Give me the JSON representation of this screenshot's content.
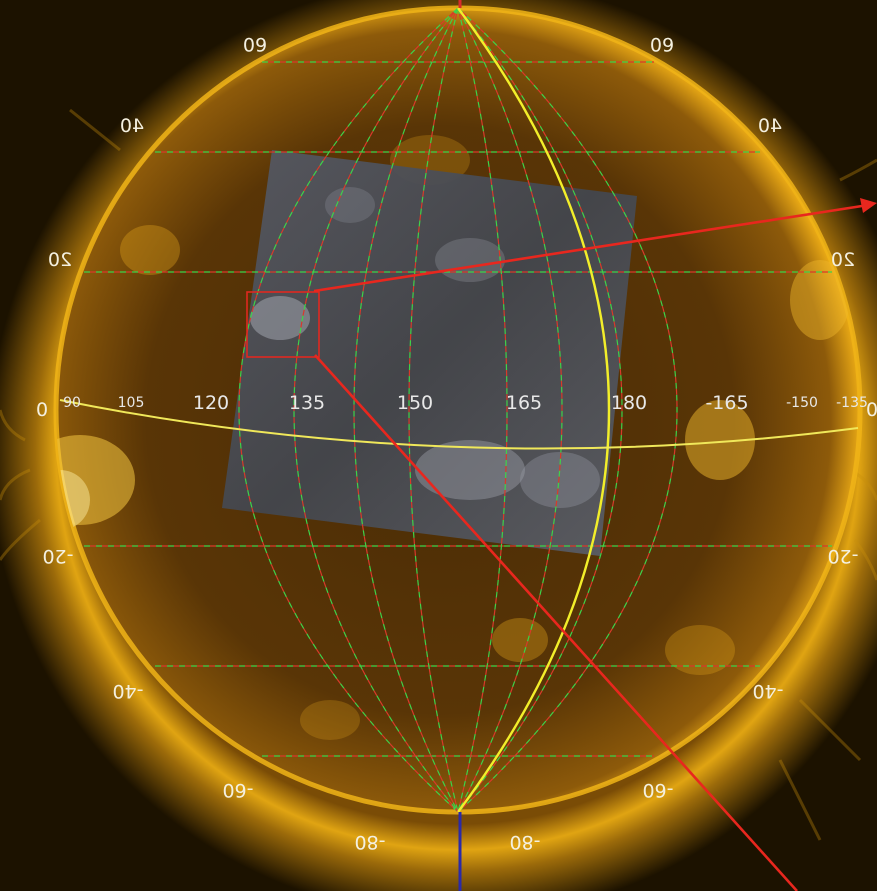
{
  "image": {
    "subject": "solar-disk",
    "colors": {
      "corona": "#e3a20a",
      "disk_dark": "#3a2304",
      "patch": "#4a4d54",
      "grid_green": "#3fd24a",
      "grid_red": "#d83a2a",
      "meridian": "#f2ee2a",
      "equator": "#f0e85a",
      "pointer": "#e8271e",
      "north_pole_line": "#d82a2a",
      "south_pole_line": "#2a2aa8"
    }
  },
  "latitude_labels": {
    "lat_60_left": "60",
    "lat_60_right": "60",
    "lat_40_left": "40",
    "lat_40_right": "40",
    "lat_20_left": "20",
    "lat_20_right": "20",
    "lat_0_left": "0",
    "lat_0_right": "0",
    "lat_m20_left": "-20",
    "lat_m20_right": "-20",
    "lat_m40_left": "-40",
    "lat_m40_right": "-40",
    "lat_m60_left": "-60",
    "lat_m60_right": "-60",
    "lat_m80_left": "-80",
    "lat_m80_right": "-80"
  },
  "longitude_labels": {
    "lon_90": "90",
    "lon_105": "105",
    "lon_120": "120",
    "lon_135": "135",
    "lon_150": "150",
    "lon_165": "165",
    "lon_180": "180",
    "lon_m165": "-165",
    "lon_m150": "-150",
    "lon_m135": "-135"
  }
}
